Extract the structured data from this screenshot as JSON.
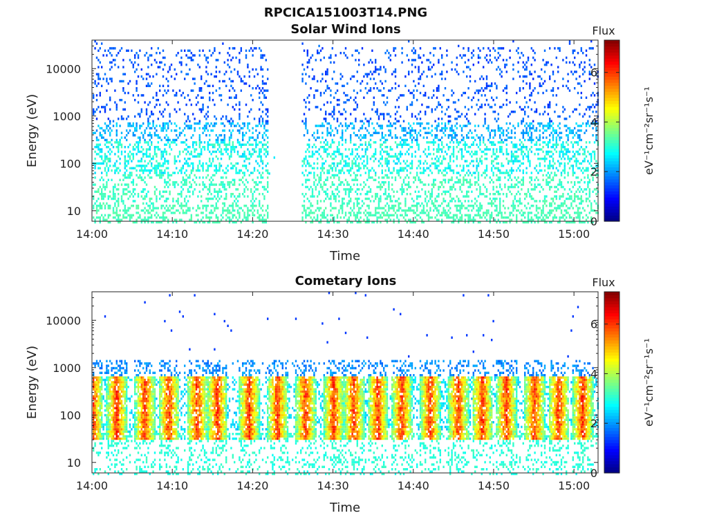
{
  "figure_title": "RPCICA151003T14.PNG",
  "colorbar": {
    "label": "Flux",
    "unit": "eV⁻¹cm⁻²sr⁻¹s⁻¹",
    "ticks": [
      "0",
      "2",
      "4",
      "6"
    ],
    "range": [
      0,
      7.3
    ],
    "colormap": "jet"
  },
  "chart_data": [
    {
      "type": "heatmap",
      "title": "Solar Wind Ions",
      "xlabel": "Time",
      "ylabel": "Energy (eV)",
      "x_ticks": [
        "14:00",
        "14:10",
        "14:20",
        "14:30",
        "14:40",
        "14:50",
        "15:00"
      ],
      "y_ticks": [
        "10",
        "100",
        "1000",
        "10000"
      ],
      "y_scale": "log",
      "x_range": [
        "14:00",
        "15:03"
      ],
      "y_range": [
        6,
        40000
      ],
      "data_gap": [
        "14:22",
        "14:26"
      ],
      "typical_flux_levels": {
        "high_energy_band": 1.5,
        "mid_band": 2.8,
        "low_band": 3.2
      }
    },
    {
      "type": "heatmap",
      "title": "Cometary Ions",
      "xlabel": "Time",
      "ylabel": "Energy (eV)",
      "x_ticks": [
        "14:00",
        "14:10",
        "14:20",
        "14:30",
        "14:40",
        "14:50",
        "15:00"
      ],
      "y_ticks": [
        "10",
        "100",
        "1000",
        "10000"
      ],
      "y_scale": "log",
      "x_range": [
        "14:00",
        "15:03"
      ],
      "y_range": [
        6,
        40000
      ],
      "periodic_bursts_minutes": [
        0,
        3,
        6.5,
        9.5,
        13,
        15.5,
        19.5,
        23,
        26.5,
        30,
        32.5,
        35.5,
        38.5,
        42,
        45.5,
        48.5,
        51.5,
        55,
        58,
        61
      ],
      "peak_flux": 6.2,
      "core_energy_band_eV": [
        40,
        500
      ]
    }
  ]
}
